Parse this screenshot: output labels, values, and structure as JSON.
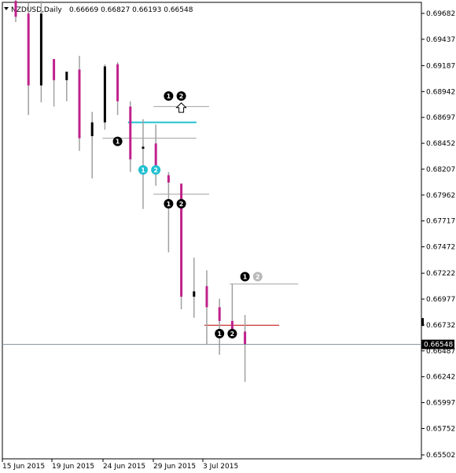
{
  "header": {
    "symbol": "NZDUSD,Daily",
    "ohlc": "0.66669 0.66827 0.66193 0.66548"
  },
  "current_price_label": "0.66548",
  "colors": {
    "bear": "#c0218c",
    "bull": "#000000",
    "wick": "#a0a0a0",
    "cyan": "#20c0d0",
    "red": "#c00000",
    "level": "#a0a0a0",
    "current_line": "#8090a0",
    "price_tag_bg": "#000000"
  },
  "chart_data": {
    "type": "candlestick",
    "title": "NZDUSD,Daily",
    "x_tick_labels": [
      "15 Jun 2015",
      "19 Jun 2015",
      "24 Jun 2015",
      "29 Jun 2015",
      "3 Jul 2015"
    ],
    "y_tick_labels": [
      "0.69682",
      "0.69437",
      "0.69187",
      "0.68942",
      "0.68697",
      "0.68452",
      "0.68207",
      "0.67962",
      "0.67717",
      "0.67472",
      "0.67222",
      "0.66977",
      "0.66732",
      "0.66487",
      "0.66242",
      "0.65997",
      "0.65752",
      "0.65502"
    ],
    "ylim": [
      0.65502,
      0.69682
    ],
    "candles": [
      {
        "open": 0.698,
        "high": 0.6985,
        "low": 0.696,
        "close": 0.6965
      },
      {
        "open": 0.6968,
        "high": 0.6978,
        "low": 0.6872,
        "close": 0.69
      },
      {
        "open": 0.69,
        "high": 0.698,
        "low": 0.6884,
        "close": 0.6968
      },
      {
        "open": 0.6925,
        "high": 0.6925,
        "low": 0.688,
        "close": 0.6905
      },
      {
        "open": 0.6905,
        "high": 0.6912,
        "low": 0.6885,
        "close": 0.6913
      },
      {
        "open": 0.6915,
        "high": 0.6928,
        "low": 0.6838,
        "close": 0.685
      },
      {
        "open": 0.6852,
        "high": 0.6875,
        "low": 0.6812,
        "close": 0.6865
      },
      {
        "open": 0.6865,
        "high": 0.692,
        "low": 0.6858,
        "close": 0.6918
      },
      {
        "open": 0.692,
        "high": 0.6922,
        "low": 0.6872,
        "close": 0.6885
      },
      {
        "open": 0.688,
        "high": 0.6885,
        "low": 0.6818,
        "close": 0.683
      },
      {
        "open": 0.684,
        "high": 0.6868,
        "low": 0.6783,
        "close": 0.6842
      },
      {
        "open": 0.6845,
        "high": 0.6863,
        "low": 0.6805,
        "close": 0.682
      },
      {
        "open": 0.6815,
        "high": 0.6818,
        "low": 0.6742,
        "close": 0.6808
      },
      {
        "open": 0.6807,
        "high": 0.6807,
        "low": 0.6688,
        "close": 0.67
      },
      {
        "open": 0.67,
        "high": 0.6737,
        "low": 0.668,
        "close": 0.6705
      },
      {
        "open": 0.671,
        "high": 0.6725,
        "low": 0.6655,
        "close": 0.669
      },
      {
        "open": 0.669,
        "high": 0.6698,
        "low": 0.6645,
        "close": 0.6677
      },
      {
        "open": 0.6677,
        "high": 0.6712,
        "low": 0.666,
        "close": 0.6667
      },
      {
        "open": 0.66669,
        "high": 0.66827,
        "low": 0.66193,
        "close": 0.66548
      }
    ],
    "levels": [
      {
        "price": 0.688,
        "from": 11,
        "to": 15,
        "color": "level"
      },
      {
        "price": 0.6865,
        "from": 9,
        "to": 14,
        "color": "cyan"
      },
      {
        "price": 0.685,
        "from": 7,
        "to": 14,
        "color": "level"
      },
      {
        "price": 0.6797,
        "from": 11,
        "to": 15,
        "color": "level"
      },
      {
        "price": 0.6712,
        "from": 17,
        "to": 22,
        "color": "level"
      },
      {
        "price": 0.6673,
        "from": 15,
        "to": 20.5,
        "color": "red"
      }
    ],
    "markers": [
      {
        "label": "1",
        "bar": 8,
        "price": 0.6847,
        "style": "black"
      },
      {
        "label": "1",
        "bar": 10,
        "price": 0.682,
        "style": "cyan"
      },
      {
        "label": "2",
        "bar": 11,
        "price": 0.682,
        "style": "cyan"
      },
      {
        "label": "1",
        "bar": 12,
        "price": 0.689,
        "style": "black"
      },
      {
        "label": "2",
        "bar": 13,
        "price": 0.689,
        "style": "black"
      },
      {
        "label": "1",
        "bar": 12,
        "price": 0.6788,
        "style": "black"
      },
      {
        "label": "2",
        "bar": 13,
        "price": 0.6788,
        "style": "black"
      },
      {
        "label": "1",
        "bar": 18,
        "price": 0.6719,
        "style": "black"
      },
      {
        "label": "2",
        "bar": 19,
        "price": 0.6719,
        "style": "grey"
      },
      {
        "label": "1",
        "bar": 16,
        "price": 0.6665,
        "style": "black"
      },
      {
        "label": "2",
        "bar": 17,
        "price": 0.6665,
        "style": "black"
      }
    ],
    "arrow": {
      "bar": 13,
      "price": 0.6879,
      "direction": "up"
    }
  }
}
